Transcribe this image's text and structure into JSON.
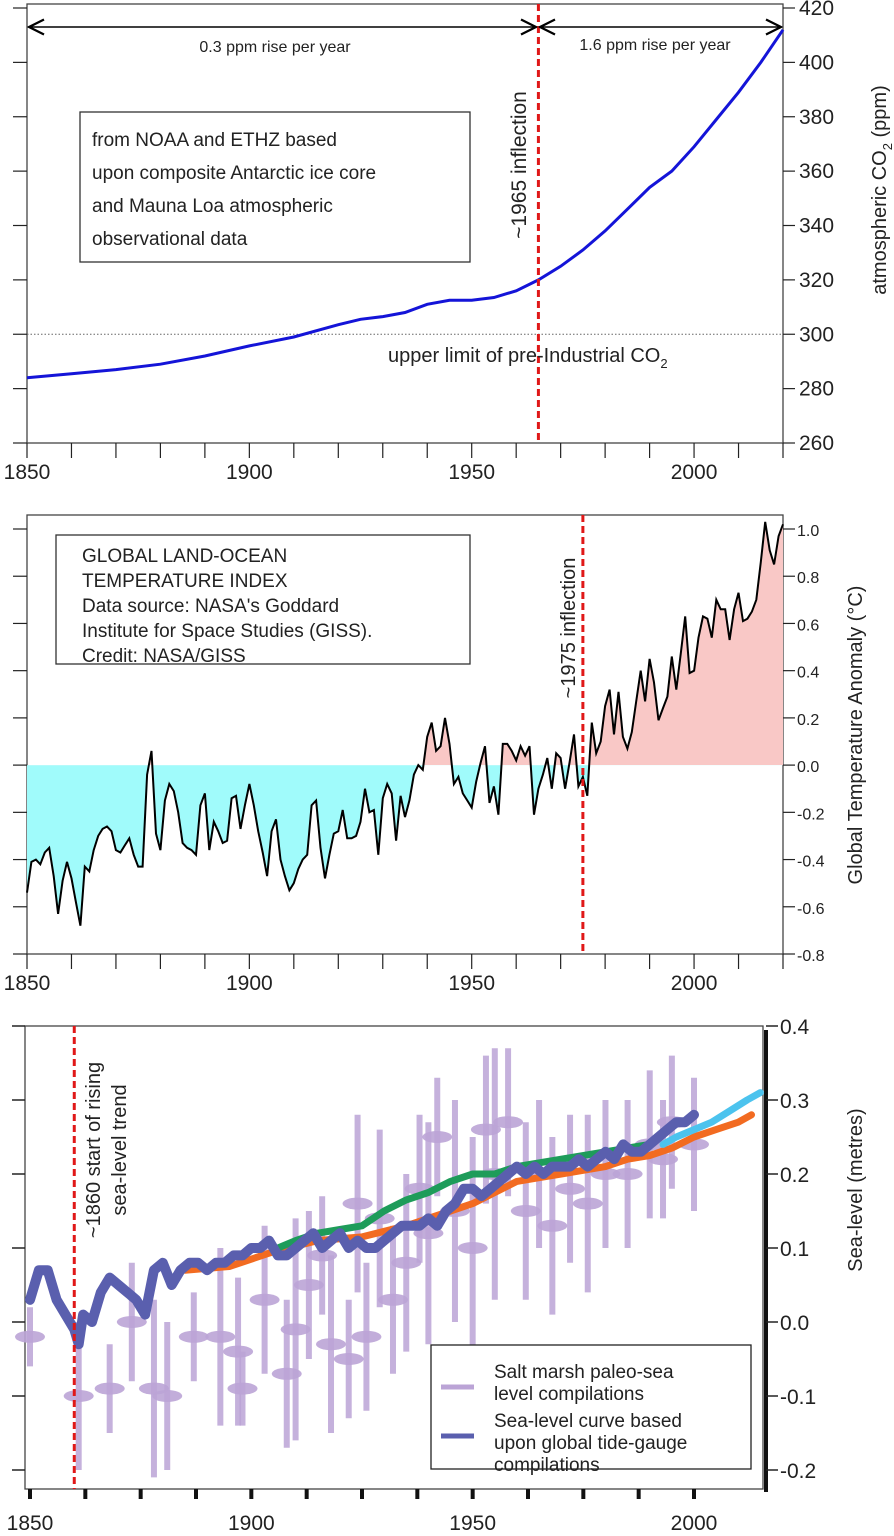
{
  "chart_data": [
    {
      "type": "line",
      "xlim": [
        1850,
        2020
      ],
      "ylim": [
        260,
        420
      ],
      "x_ticks": [
        "1850",
        "1900",
        "1950",
        "2000"
      ],
      "y_ticks": [
        "260",
        "280",
        "300",
        "320",
        "340",
        "360",
        "380",
        "400",
        "420"
      ],
      "ylabel_main": "atmospheric CO",
      "ylabel_sub": "2",
      "ylabel_tail": " (ppm)",
      "line_color": "#1414d8",
      "series": [
        {
          "x": [
            1850,
            1860,
            1870,
            1880,
            1890,
            1900,
            1910,
            1920,
            1925,
            1930,
            1935,
            1940,
            1945,
            1950,
            1955,
            1960,
            1965,
            1970,
            1975,
            1980,
            1985,
            1990,
            1995,
            2000,
            2005,
            2010,
            2015,
            2020
          ],
          "y": [
            284,
            285.5,
            287,
            289,
            292,
            295.7,
            299,
            303.5,
            305.5,
            306.5,
            308,
            311,
            312.5,
            312.5,
            313.5,
            316,
            320,
            325,
            331,
            338,
            346,
            354,
            360,
            369,
            379,
            389,
            400,
            412
          ]
        }
      ],
      "annotations": {
        "source_lines": [
          "from NOAA and ETHZ based",
          "upon composite Antarctic ice core",
          "and Mauna Loa atmospheric",
          "observational data"
        ],
        "inflection_label": "~1965 inflection",
        "inflection_year": 1965,
        "rate_before": "0.3 ppm rise per year",
        "rate_after": "1.6 ppm rise per year",
        "threshold_value": 300,
        "threshold_label": "upper limit of pre-Industrial CO",
        "threshold_label_sub": "2"
      }
    },
    {
      "type": "area",
      "xlim": [
        1850,
        2020
      ],
      "ylim": [
        -0.8,
        1.0
      ],
      "x_ticks": [
        "1850",
        "1900",
        "1950",
        "2000"
      ],
      "y_ticks": [
        "-0.8",
        "-0.6",
        "-0.4",
        "-0.2",
        "0.0",
        "0.2",
        "0.4",
        "0.6",
        "0.8",
        "1.0"
      ],
      "ylabel": "Global Temperature Anomaly (°C)",
      "colors": {
        "below": "#a0fbfb",
        "above": "#f9c8c6",
        "line": "#000000"
      },
      "series": [
        {
          "x": [
            1850,
            1851,
            1852,
            1853,
            1854,
            1855,
            1856,
            1857,
            1858,
            1859,
            1860,
            1861,
            1862,
            1863,
            1864,
            1865,
            1866,
            1867,
            1868,
            1869,
            1870,
            1871,
            1872,
            1873,
            1874,
            1875,
            1876,
            1877,
            1878,
            1879,
            1880,
            1881,
            1882,
            1883,
            1884,
            1885,
            1886,
            1887,
            1888,
            1889,
            1890,
            1891,
            1892,
            1893,
            1894,
            1895,
            1896,
            1897,
            1898,
            1899,
            1900,
            1901,
            1902,
            1903,
            1904,
            1905,
            1906,
            1907,
            1908,
            1909,
            1910,
            1911,
            1912,
            1913,
            1914,
            1915,
            1916,
            1917,
            1918,
            1919,
            1920,
            1921,
            1922,
            1923,
            1924,
            1925,
            1926,
            1927,
            1928,
            1929,
            1930,
            1931,
            1932,
            1933,
            1934,
            1935,
            1936,
            1937,
            1938,
            1939,
            1940,
            1941,
            1942,
            1943,
            1944,
            1945,
            1946,
            1947,
            1948,
            1949,
            1950,
            1951,
            1952,
            1953,
            1954,
            1955,
            1956,
            1957,
            1958,
            1959,
            1960,
            1961,
            1962,
            1963,
            1964,
            1965,
            1966,
            1967,
            1968,
            1969,
            1970,
            1971,
            1972,
            1973,
            1974,
            1975,
            1976,
            1977,
            1978,
            1979,
            1980,
            1981,
            1982,
            1983,
            1984,
            1985,
            1986,
            1987,
            1988,
            1989,
            1990,
            1991,
            1992,
            1993,
            1994,
            1995,
            1996,
            1997,
            1998,
            1999,
            2000,
            2001,
            2002,
            2003,
            2004,
            2005,
            2006,
            2007,
            2008,
            2009,
            2010,
            2011,
            2012,
            2013,
            2014,
            2015,
            2016,
            2017,
            2018,
            2019,
            2020
          ],
          "y": [
            -0.54,
            -0.41,
            -0.4,
            -0.42,
            -0.37,
            -0.35,
            -0.47,
            -0.63,
            -0.49,
            -0.41,
            -0.48,
            -0.58,
            -0.68,
            -0.43,
            -0.45,
            -0.36,
            -0.3,
            -0.27,
            -0.26,
            -0.28,
            -0.36,
            -0.37,
            -0.34,
            -0.31,
            -0.38,
            -0.43,
            -0.43,
            -0.04,
            0.06,
            -0.29,
            -0.36,
            -0.15,
            -0.08,
            -0.11,
            -0.2,
            -0.33,
            -0.35,
            -0.36,
            -0.38,
            -0.17,
            -0.12,
            -0.36,
            -0.24,
            -0.28,
            -0.33,
            -0.32,
            -0.14,
            -0.13,
            -0.27,
            -0.17,
            -0.08,
            -0.17,
            -0.28,
            -0.37,
            -0.47,
            -0.28,
            -0.23,
            -0.4,
            -0.47,
            -0.53,
            -0.5,
            -0.44,
            -0.4,
            -0.38,
            -0.17,
            -0.15,
            -0.35,
            -0.48,
            -0.38,
            -0.29,
            -0.28,
            -0.19,
            -0.31,
            -0.31,
            -0.3,
            -0.24,
            -0.1,
            -0.2,
            -0.19,
            -0.38,
            -0.14,
            -0.08,
            -0.12,
            -0.32,
            -0.13,
            -0.22,
            -0.15,
            -0.04,
            0.0,
            -0.02,
            0.12,
            0.18,
            0.06,
            0.08,
            0.2,
            0.09,
            -0.08,
            -0.05,
            -0.12,
            -0.15,
            -0.18,
            -0.07,
            0.01,
            0.08,
            -0.16,
            -0.09,
            -0.21,
            0.09,
            0.09,
            0.06,
            0.02,
            0.08,
            0.04,
            0.08,
            -0.21,
            -0.1,
            -0.04,
            0.03,
            -0.1,
            0.05,
            0.03,
            -0.1,
            0.01,
            0.13,
            -0.09,
            -0.05,
            -0.13,
            0.18,
            0.05,
            0.1,
            0.25,
            0.32,
            0.13,
            0.31,
            0.12,
            0.07,
            0.14,
            0.27,
            0.4,
            0.27,
            0.45,
            0.35,
            0.19,
            0.24,
            0.29,
            0.46,
            0.32,
            0.47,
            0.63,
            0.39,
            0.4,
            0.54,
            0.63,
            0.62,
            0.54,
            0.7,
            0.66,
            0.66,
            0.53,
            0.66,
            0.73,
            0.61,
            0.62,
            0.65,
            0.7,
            0.86,
            1.03,
            0.91,
            0.85,
            0.97,
            1.02
          ]
        }
      ],
      "annotations": {
        "source_lines": [
          "GLOBAL LAND-OCEAN",
          "TEMPERATURE INDEX",
          "Data source: NASA's Goddard",
          "Institute for Space Studies (GISS).",
          "Credit: NASA/GISS"
        ],
        "inflection_label": "~1975 inflection",
        "inflection_year": 1975
      }
    },
    {
      "type": "line",
      "xlim": [
        1850,
        2015
      ],
      "ylim": [
        -0.22,
        0.4
      ],
      "x_ticks": [
        "1850",
        "1900",
        "1950",
        "2000"
      ],
      "y_ticks": [
        "-0.2",
        "-0.1",
        "0.0",
        "0.1",
        "0.2",
        "0.3",
        "0.4"
      ],
      "ylabel": "Sea-level (metres)",
      "legend": {
        "position": "bottom-right",
        "entries": [
          {
            "lines": [
              "Salt marsh paleo-sea",
              "level compilations"
            ],
            "color": "#bba4d6"
          },
          {
            "lines": [
              "Sea-level curve based",
              "upon global tide-gauge",
              "compilations"
            ],
            "color": "#5a5fae"
          }
        ]
      },
      "salt_marsh_points": [
        [
          1850,
          -0.02,
          0.04
        ],
        [
          1861,
          -0.1,
          0.1
        ],
        [
          1868,
          -0.09,
          0.06
        ],
        [
          1873,
          0.0,
          0.08
        ],
        [
          1878,
          -0.09,
          0.12
        ],
        [
          1881,
          -0.1,
          0.1
        ],
        [
          1887,
          -0.02,
          0.06
        ],
        [
          1893,
          -0.02,
          0.12
        ],
        [
          1897,
          -0.04,
          0.1
        ],
        [
          1898,
          -0.09,
          0.05
        ],
        [
          1903,
          0.03,
          0.1
        ],
        [
          1908,
          -0.07,
          0.1
        ],
        [
          1910,
          -0.01,
          0.15
        ],
        [
          1913,
          0.05,
          0.1
        ],
        [
          1916,
          0.09,
          0.08
        ],
        [
          1918,
          -0.03,
          0.12
        ],
        [
          1922,
          -0.05,
          0.08
        ],
        [
          1924,
          0.16,
          0.12
        ],
        [
          1926,
          -0.02,
          0.1
        ],
        [
          1929,
          0.14,
          0.12
        ],
        [
          1932,
          0.03,
          0.1
        ],
        [
          1935,
          0.08,
          0.12
        ],
        [
          1938,
          0.18,
          0.1
        ],
        [
          1940,
          0.12,
          0.15
        ],
        [
          1942,
          0.25,
          0.08
        ],
        [
          1946,
          0.15,
          0.15
        ],
        [
          1950,
          0.1,
          0.15
        ],
        [
          1953,
          0.26,
          0.1
        ],
        [
          1955,
          0.2,
          0.17
        ],
        [
          1958,
          0.27,
          0.1
        ],
        [
          1962,
          0.15,
          0.12
        ],
        [
          1965,
          0.2,
          0.1
        ],
        [
          1968,
          0.13,
          0.12
        ],
        [
          1972,
          0.18,
          0.1
        ],
        [
          1976,
          0.16,
          0.12
        ],
        [
          1980,
          0.2,
          0.1
        ],
        [
          1985,
          0.2,
          0.1
        ],
        [
          1990,
          0.24,
          0.1
        ],
        [
          1993,
          0.22,
          0.08
        ],
        [
          1995,
          0.27,
          0.09
        ],
        [
          2000,
          0.24,
          0.09
        ]
      ],
      "series": [
        {
          "color": "#f26b21",
          "x": [
            1885,
            1895,
            1905,
            1915,
            1925,
            1935,
            1945,
            1950,
            1955,
            1960,
            1965,
            1970,
            1975,
            1980,
            1985,
            1990,
            1995,
            2000,
            2005,
            2010,
            2013
          ],
          "y": [
            0.07,
            0.075,
            0.095,
            0.11,
            0.115,
            0.13,
            0.15,
            0.16,
            0.175,
            0.19,
            0.195,
            0.2,
            0.205,
            0.21,
            0.22,
            0.225,
            0.235,
            0.25,
            0.26,
            0.27,
            0.28
          ]
        },
        {
          "color": "#1e9c5a",
          "x": [
            1906,
            1910,
            1915,
            1920,
            1925,
            1930,
            1935,
            1940,
            1945,
            1950,
            1955,
            1960,
            1970,
            1980,
            1990
          ],
          "y": [
            0.1,
            0.11,
            0.12,
            0.125,
            0.13,
            0.15,
            0.165,
            0.175,
            0.19,
            0.2,
            0.2,
            0.21,
            0.22,
            0.23,
            0.24
          ]
        },
        {
          "color": "#5a5fae",
          "x": [
            1850,
            1852,
            1854,
            1856,
            1858,
            1860,
            1861,
            1862,
            1864,
            1866,
            1868,
            1870,
            1872,
            1874,
            1876,
            1878,
            1880,
            1882,
            1884,
            1886,
            1888,
            1890,
            1892,
            1894,
            1896,
            1898,
            1900,
            1902,
            1904,
            1906,
            1908,
            1910,
            1912,
            1914,
            1916,
            1918,
            1920,
            1922,
            1924,
            1926,
            1928,
            1930,
            1932,
            1934,
            1936,
            1938,
            1940,
            1942,
            1944,
            1946,
            1948,
            1950,
            1952,
            1954,
            1956,
            1958,
            1960,
            1962,
            1964,
            1966,
            1968,
            1970,
            1972,
            1974,
            1976,
            1978,
            1980,
            1982,
            1984,
            1986,
            1988,
            1990,
            1992,
            1994,
            1996,
            1998,
            2000
          ],
          "y": [
            0.03,
            0.07,
            0.07,
            0.03,
            0.01,
            -0.01,
            -0.03,
            0.01,
            0.0,
            0.04,
            0.06,
            0.05,
            0.04,
            0.03,
            0.01,
            0.07,
            0.08,
            0.05,
            0.07,
            0.08,
            0.08,
            0.07,
            0.08,
            0.08,
            0.09,
            0.09,
            0.1,
            0.1,
            0.11,
            0.09,
            0.09,
            0.1,
            0.11,
            0.12,
            0.1,
            0.11,
            0.12,
            0.1,
            0.11,
            0.1,
            0.1,
            0.11,
            0.12,
            0.13,
            0.13,
            0.13,
            0.14,
            0.13,
            0.15,
            0.16,
            0.18,
            0.18,
            0.17,
            0.18,
            0.19,
            0.2,
            0.21,
            0.2,
            0.21,
            0.2,
            0.21,
            0.21,
            0.21,
            0.22,
            0.21,
            0.22,
            0.23,
            0.22,
            0.24,
            0.23,
            0.23,
            0.24,
            0.25,
            0.26,
            0.27,
            0.27,
            0.28
          ]
        },
        {
          "color": "#4cc3ee",
          "x": [
            1993,
            1996,
            2000,
            2004,
            2008,
            2012,
            2015
          ],
          "y": [
            0.24,
            0.25,
            0.26,
            0.27,
            0.285,
            0.3,
            0.31
          ]
        }
      ],
      "annotations": {
        "inflection_lines": [
          "~1860 start of rising",
          "sea-level trend"
        ],
        "inflection_year": 1860
      }
    }
  ]
}
